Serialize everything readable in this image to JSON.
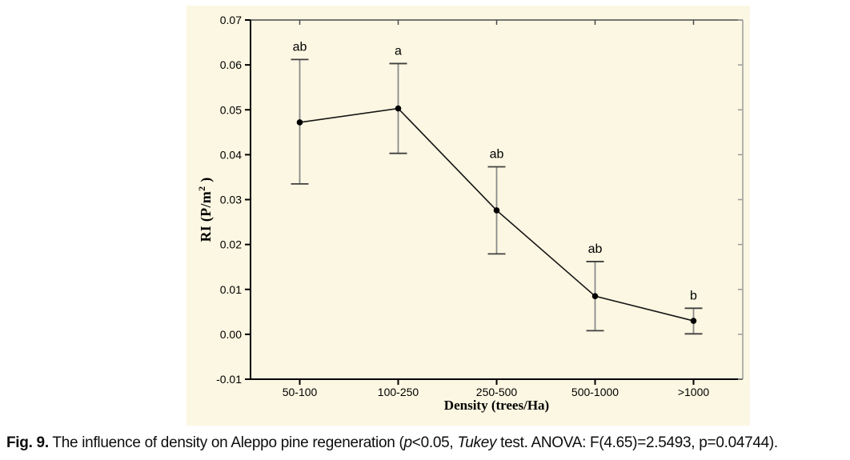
{
  "chart_data": {
    "type": "line",
    "title": "",
    "categories": [
      "50-100",
      "100-250",
      "250-500",
      "500-1000",
      ">1000"
    ],
    "series": [
      {
        "name": "RI",
        "values": [
          0.0472,
          0.0503,
          0.0276,
          0.0085,
          0.003
        ],
        "error_low": [
          0.0335,
          0.0403,
          0.0179,
          0.0008,
          0.0001
        ],
        "error_high": [
          0.0612,
          0.0603,
          0.0373,
          0.0162,
          0.0058
        ]
      }
    ],
    "point_labels": [
      "ab",
      "a",
      "ab",
      "ab",
      "b"
    ],
    "xlabel": "Density (trees/Ha)",
    "ylabel": "RI (P/m2)",
    "ylabel_parts": {
      "base": "RI (P/m",
      "sup": "2",
      "close": " )"
    },
    "ylim": [
      -0.01,
      0.07
    ],
    "yticks": [
      0.07,
      0.06,
      0.05,
      0.04,
      0.03,
      0.02,
      0.01,
      0.0,
      -0.01
    ],
    "ytick_labels": [
      "0.07",
      "0.06",
      "0.05",
      "0.04",
      "0.03",
      "0.02",
      "0.01",
      "0.00",
      "-0.01"
    ],
    "grid": false,
    "legend": "none",
    "error_bar_style": "whisker-with-caps",
    "marker": "filled-circle"
  },
  "caption": {
    "fig_label": "Fig. 9.",
    "text_1": " The influence of density on Aleppo pine regeneration (",
    "italic_p": "p",
    "text_2": "<0.05, ",
    "italic_tukey": "Tukey",
    "text_3": " test. ANOVA: F(4.65)=2.5493, p=0.04744)."
  },
  "colors": {
    "panel_bg": "#FCF7E2",
    "axis": "#000000",
    "frame_top": "#4A4A4A",
    "frame_right": "#9B9B9B",
    "whisker": "#8A8A8A",
    "cap": "#3F3F3F",
    "line": "#141414",
    "marker": "#000000",
    "text": "#000000"
  }
}
